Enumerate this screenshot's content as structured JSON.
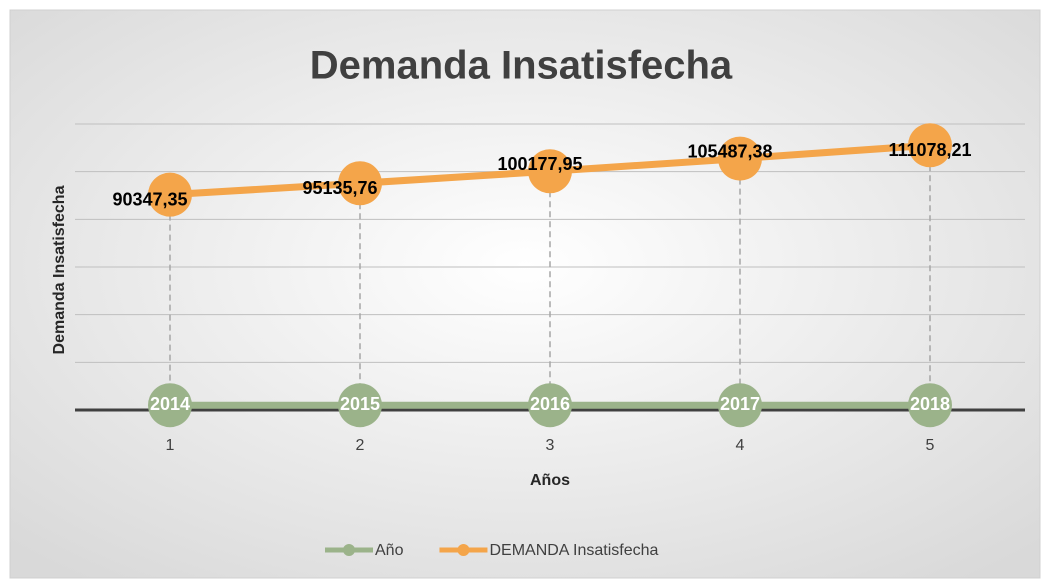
{
  "chart_data": {
    "type": "line",
    "title": "Demanda Insatisfecha",
    "x_label": "Años",
    "y_label": "Demanda Insatisfecha",
    "categories": [
      "1",
      "2",
      "3",
      "4",
      "5"
    ],
    "series": [
      {
        "name": "Año",
        "color": "#9bb38a",
        "values": [
          2014,
          2015,
          2016,
          2017,
          2018
        ]
      },
      {
        "name": "DEMANDA Insatisfecha",
        "color": "#f4a54a",
        "values": [
          90347.35,
          95135.76,
          100177.95,
          105487.38,
          111078.21
        ],
        "value_labels": [
          "90347,35",
          "95135,76",
          "100177,95",
          "105487,38",
          "111078,21"
        ]
      }
    ],
    "ylim": [
      0,
      120000
    ],
    "yticks": [
      0,
      20000,
      40000,
      60000,
      80000,
      100000,
      120000
    ],
    "grid": true,
    "legend": "bottom"
  }
}
